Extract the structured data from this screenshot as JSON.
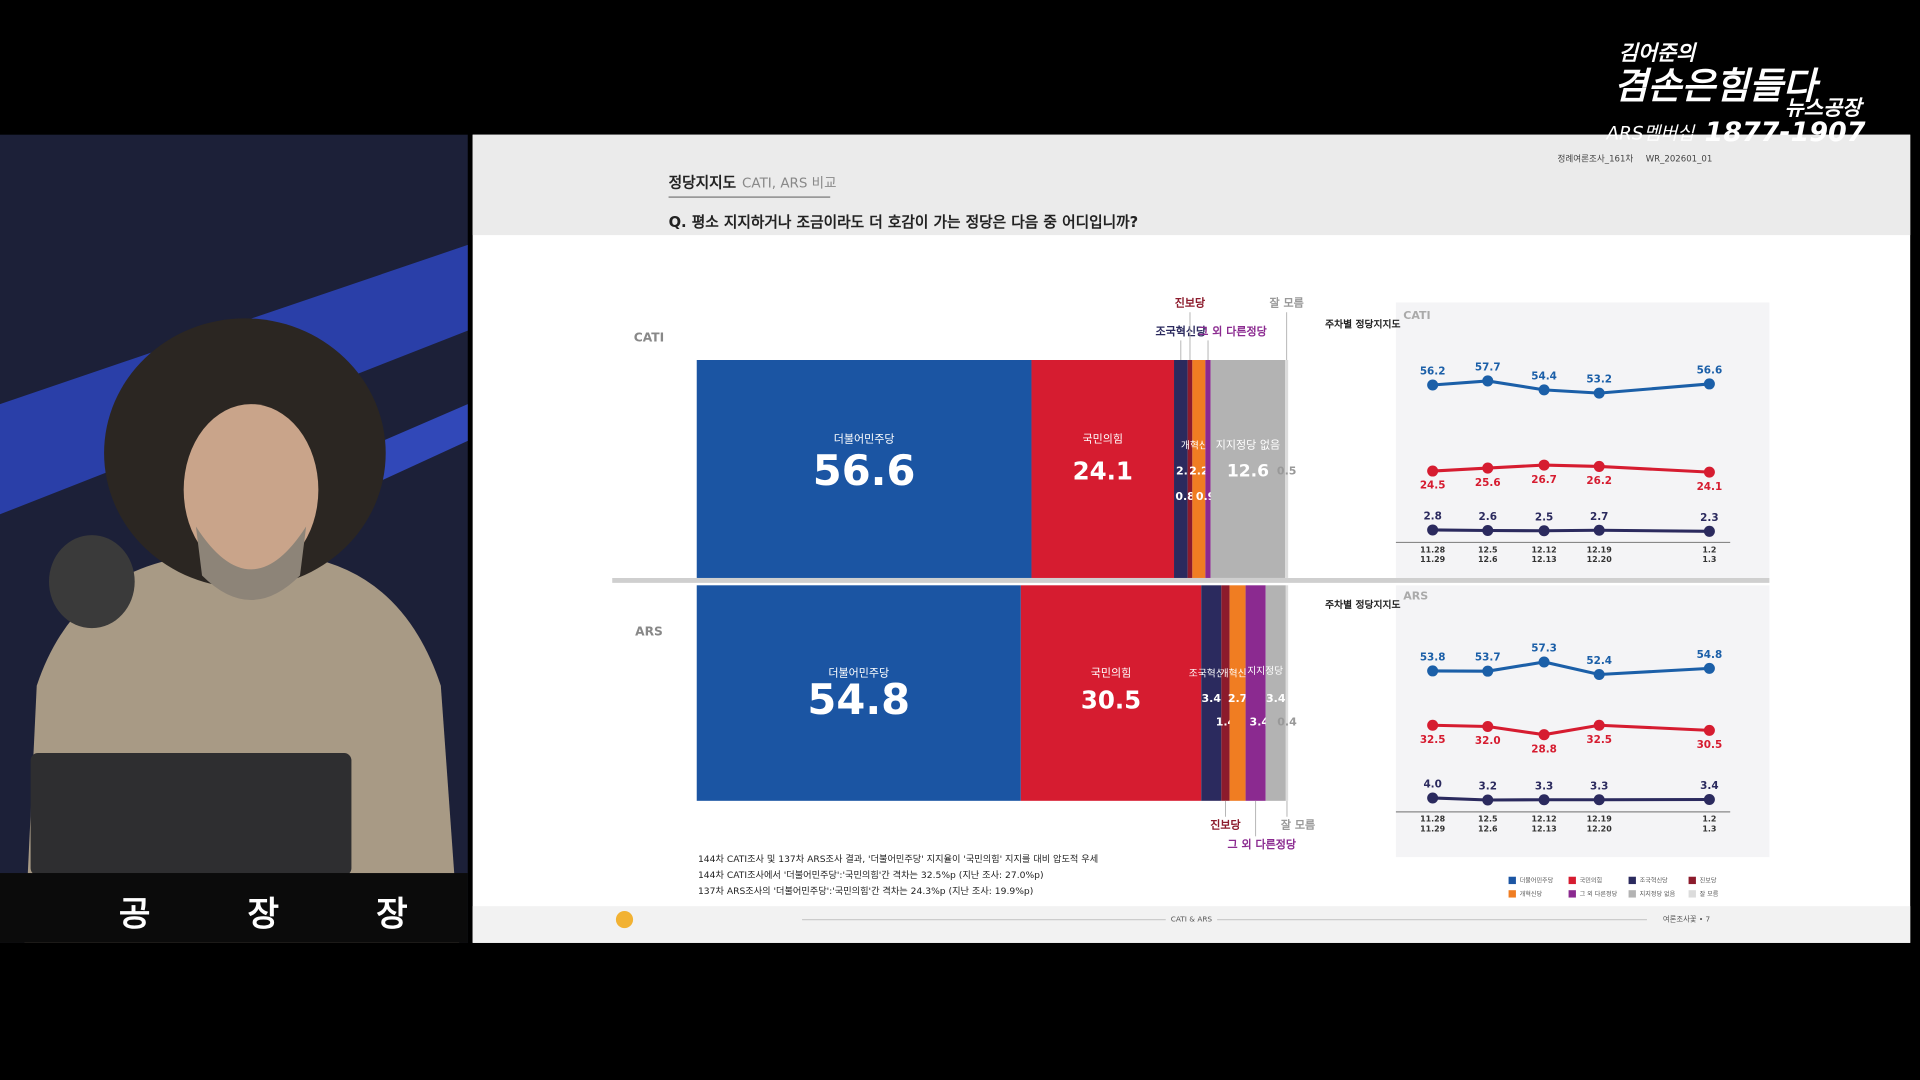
{
  "broadcast": {
    "logo_lines": [
      "김어준의",
      "겸손은힘들다",
      "뉴스공장"
    ],
    "membership": "ARS멤버십",
    "phone": "1877-1907",
    "nameplate": [
      "공",
      "장",
      "장"
    ]
  },
  "slide": {
    "title": "정당지지도",
    "subtitle": "CATI, ARS 비교",
    "question": "Q. 평소 지지하거나 조금이라도 더 호감이 가는 정당은 다음 중 어디입니까?",
    "survey_id": "정례여론조사_161차",
    "code": "WR_202601_01",
    "notes": [
      "144차 CATI조사 및 137차 ARS조사 결과, '더불어민주당' 지지율이 '국민의힘' 지지를 대비 압도적 우세",
      "144차 CATI조사에서 '더불어민주당':'국민의힘'간 격차는 32.5%p (지난 조사: 27.0%p)",
      "137차 ARS조사의 '더불어민주당':'국민의힘'간 격차는 24.3%p (지난 조사: 19.9%p)"
    ],
    "footer_center": "CATI & ARS",
    "footer_right": "여론조사꽃 • 7"
  },
  "chart_data": [
    {
      "type": "bar",
      "orientation": "horizontal",
      "stacked": true,
      "categories": [
        "CATI",
        "ARS"
      ],
      "xlim": [
        0,
        100
      ],
      "series": [
        {
          "name": "더불어민주당",
          "color": "#1b55a3",
          "values": [
            56.6,
            54.8
          ]
        },
        {
          "name": "국민의힘",
          "color": "#d61c30",
          "values": [
            24.1,
            30.5
          ]
        },
        {
          "name": "조국혁신당",
          "color": "#2b2a5e",
          "values": [
            2.3,
            3.4
          ]
        },
        {
          "name": "진보당",
          "color": "#8c1b2c",
          "values": [
            0.8,
            1.4
          ]
        },
        {
          "name": "개혁신당",
          "color": "#f07d22",
          "values": [
            2.2,
            2.7
          ]
        },
        {
          "name": "그 외 다른정당",
          "color": "#8b2a90",
          "values": [
            0.9,
            3.4
          ]
        },
        {
          "name": "지지정당 없음",
          "color": "#b3b3b3",
          "values": [
            12.6,
            3.4
          ]
        },
        {
          "name": "잘 모름",
          "color": "#dcdcdc",
          "values": [
            0.5,
            0.4
          ]
        }
      ]
    },
    {
      "type": "line",
      "title": "주차별 정당지지도",
      "subtitle": "CATI",
      "ylim": [
        0,
        60
      ],
      "categories": [
        [
          "11.28",
          "11.29"
        ],
        [
          "12.5",
          "12.6"
        ],
        [
          "12.12",
          "12.13"
        ],
        [
          "12.19",
          "12.20"
        ],
        [
          "1.2",
          "1.3"
        ]
      ],
      "series": [
        {
          "name": "더불어민주당",
          "color": "#1b5fa8",
          "values": [
            56.2,
            57.7,
            54.4,
            53.2,
            56.6
          ]
        },
        {
          "name": "국민의힘",
          "color": "#d61c30",
          "values": [
            24.5,
            25.6,
            26.7,
            26.2,
            24.1
          ]
        },
        {
          "name": "조국혁신당",
          "color": "#2b2a5e",
          "values": [
            2.8,
            2.6,
            2.5,
            2.7,
            2.3
          ]
        }
      ]
    },
    {
      "type": "line",
      "title": "주차별 정당지지도",
      "subtitle": "ARS",
      "ylim": [
        0,
        60
      ],
      "categories": [
        [
          "11.28",
          "11.29"
        ],
        [
          "12.5",
          "12.6"
        ],
        [
          "12.12",
          "12.13"
        ],
        [
          "12.19",
          "12.20"
        ],
        [
          "1.2",
          "1.3"
        ]
      ],
      "series": [
        {
          "name": "더불어민주당",
          "color": "#1b5fa8",
          "values": [
            53.8,
            53.7,
            57.3,
            52.4,
            54.8
          ]
        },
        {
          "name": "국민의힘",
          "color": "#d61c30",
          "values": [
            32.5,
            32,
            28.8,
            32.5,
            30.5
          ],
          "value_labels": [
            "32.5",
            "32.0",
            "28.8",
            "32.5",
            "30.5"
          ]
        },
        {
          "name": "조국혁신당",
          "color": "#2b2a5e",
          "values": [
            4,
            3.2,
            3.3,
            3.3,
            3.4
          ],
          "value_labels": [
            "4.0",
            "3.2",
            "3.3",
            "3.3",
            "3.4"
          ]
        }
      ]
    }
  ]
}
